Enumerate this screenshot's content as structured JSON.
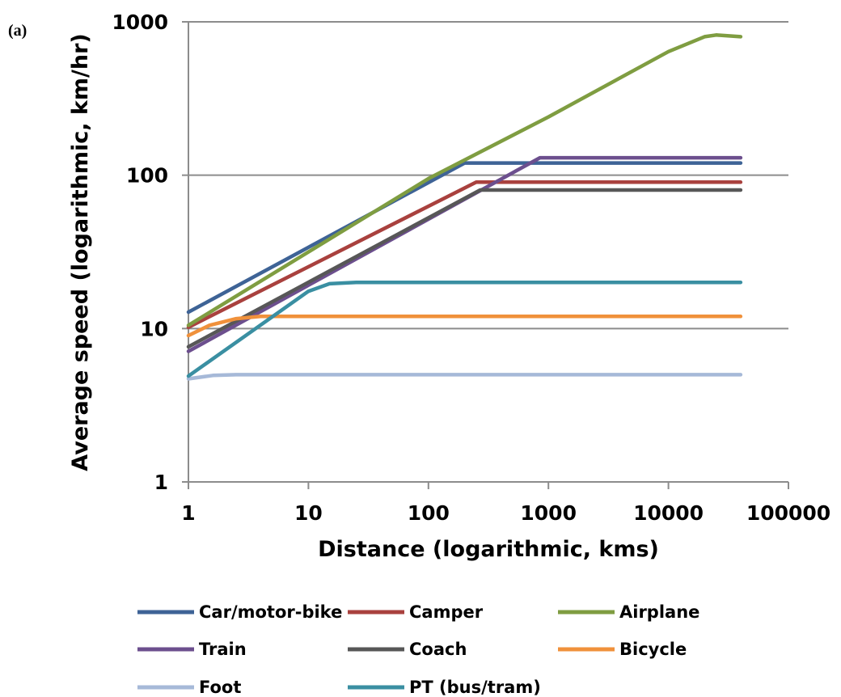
{
  "panel_label": "(a)",
  "chart_data": {
    "type": "line",
    "title": "",
    "xlabel": "Distance (logarithmic, kms)",
    "ylabel": "Average speed (logarithmic, km/hr)",
    "x_scale": "log",
    "y_scale": "log",
    "xlim": [
      1,
      100000
    ],
    "ylim": [
      1,
      1000
    ],
    "x_ticks": [
      "1",
      "10",
      "100",
      "1000",
      "10000",
      "100000"
    ],
    "y_ticks": [
      "1",
      "10",
      "100",
      "1000"
    ],
    "grid": "horizontal",
    "legend": "bottom",
    "series": [
      {
        "name": "Car/motor-bike",
        "color": "#3e6396",
        "points": [
          [
            1,
            12.8
          ],
          [
            200,
            120
          ],
          [
            40000,
            120
          ]
        ]
      },
      {
        "name": "Camper",
        "color": "#a9413e",
        "points": [
          [
            1,
            10.2
          ],
          [
            250,
            90
          ],
          [
            40000,
            90
          ]
        ]
      },
      {
        "name": "Airplane",
        "color": "#7f9d41",
        "points": [
          [
            1,
            10.5
          ],
          [
            100,
            95
          ],
          [
            1000,
            240
          ],
          [
            10000,
            640
          ],
          [
            20000,
            800
          ],
          [
            25000,
            820
          ],
          [
            40000,
            800
          ]
        ]
      },
      {
        "name": "Train",
        "color": "#6c4f8e",
        "points": [
          [
            1,
            7.1
          ],
          [
            850,
            130
          ],
          [
            40000,
            130
          ]
        ]
      },
      {
        "name": "Coach",
        "color": "#575757",
        "points": [
          [
            1,
            7.6
          ],
          [
            270,
            80
          ],
          [
            40000,
            80
          ]
        ]
      },
      {
        "name": "Bicycle",
        "color": "#f0913b",
        "points": [
          [
            1,
            9
          ],
          [
            1.5,
            10.5
          ],
          [
            2.5,
            11.6
          ],
          [
            4,
            12
          ],
          [
            40000,
            12
          ]
        ]
      },
      {
        "name": "Foot",
        "color": "#a6b9d8",
        "points": [
          [
            1,
            4.7
          ],
          [
            1.6,
            4.95
          ],
          [
            2.5,
            5
          ],
          [
            40000,
            5
          ]
        ]
      },
      {
        "name": "PT (bus/tram)",
        "color": "#3a8fa2",
        "points": [
          [
            1,
            4.9
          ],
          [
            10,
            17.5
          ],
          [
            15,
            19.6
          ],
          [
            25,
            20
          ],
          [
            40000,
            20
          ]
        ]
      }
    ]
  }
}
